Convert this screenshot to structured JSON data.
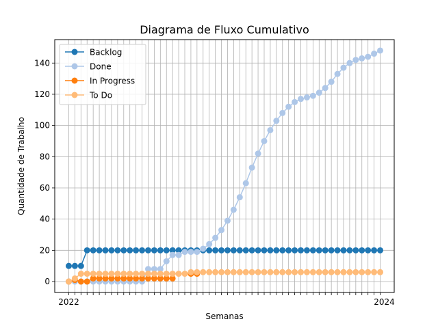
{
  "chart_data": {
    "type": "line",
    "title": "Diagrama de Fluxo Cumulativo",
    "xlabel": "Semanas",
    "ylabel": "Quantidade de Trabalho",
    "ylim": [
      -7,
      155
    ],
    "yticks": [
      0,
      20,
      40,
      60,
      80,
      100,
      120,
      140
    ],
    "grid": true,
    "legend_position": "top-left",
    "x_tick_label_first": "2022",
    "x_tick_label_last": "2024",
    "x": [
      1,
      2,
      3,
      4,
      5,
      6,
      7,
      8,
      9,
      10,
      11,
      12,
      13,
      14,
      15,
      16,
      17,
      18,
      19,
      20,
      21,
      22,
      23,
      24,
      25,
      26,
      27,
      28,
      29,
      30,
      31,
      32,
      33,
      34,
      35,
      36,
      37,
      38,
      39,
      40,
      41,
      42,
      43,
      44,
      45,
      46,
      47,
      48,
      49,
      50,
      51,
      52
    ],
    "series": [
      {
        "name": "Backlog",
        "color": "#1f77b4",
        "values": [
          10,
          10,
          10,
          20,
          20,
          20,
          20,
          20,
          20,
          20,
          20,
          20,
          20,
          20,
          20,
          20,
          20,
          20,
          20,
          20,
          20,
          20,
          20,
          20,
          20,
          20,
          20,
          20,
          20,
          20,
          20,
          20,
          20,
          20,
          20,
          20,
          20,
          20,
          20,
          20,
          20,
          20,
          20,
          20,
          20,
          20,
          20,
          20,
          20,
          20,
          20,
          20
        ]
      },
      {
        "name": "Done",
        "color": "#aec7e8",
        "values": [
          0,
          0,
          0,
          0,
          0,
          0,
          0,
          0,
          0,
          0,
          0,
          0,
          0,
          8,
          8,
          8,
          13,
          17,
          17,
          19,
          19,
          19,
          21,
          24,
          28,
          33,
          39,
          46,
          54,
          63,
          73,
          82,
          90,
          97,
          103,
          108,
          112,
          115,
          117,
          118,
          119,
          121,
          124,
          128,
          133,
          137,
          140,
          142,
          143,
          144,
          146,
          148
        ]
      },
      {
        "name": "In Progress",
        "color": "#ff7f0e",
        "values": [
          0,
          1,
          0,
          0,
          2,
          2,
          2,
          2,
          2,
          2,
          2,
          2,
          2,
          2,
          2,
          2,
          2,
          2,
          null,
          null,
          5,
          5,
          null,
          null,
          null,
          null,
          null,
          null,
          null,
          null,
          null,
          null,
          null,
          null,
          null,
          null,
          null,
          null,
          null,
          null,
          null,
          null,
          null,
          null,
          null,
          null,
          null,
          null,
          null,
          null,
          null,
          null
        ]
      },
      {
        "name": "To Do",
        "color": "#ffbb78",
        "values": [
          0,
          2,
          5,
          5,
          5,
          5,
          5,
          5,
          5,
          5,
          5,
          5,
          5,
          5,
          5,
          5,
          5,
          5,
          5,
          5,
          6,
          6,
          6,
          6,
          6,
          6,
          6,
          6,
          6,
          6,
          6,
          6,
          6,
          6,
          6,
          6,
          6,
          6,
          6,
          6,
          6,
          6,
          6,
          6,
          6,
          6,
          6,
          6,
          6,
          6,
          6,
          6
        ]
      }
    ]
  }
}
